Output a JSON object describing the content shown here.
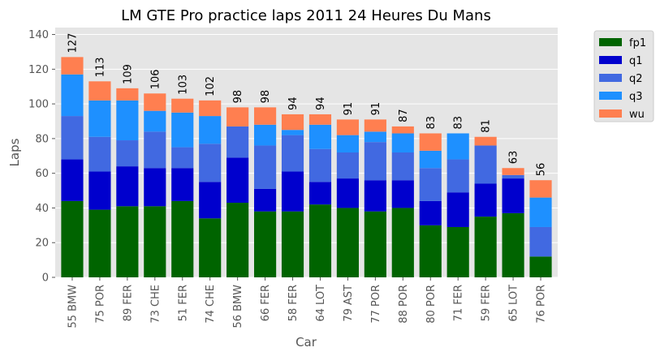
{
  "chart_data": {
    "type": "bar",
    "stacked": true,
    "title": "LM GTE Pro practice laps 2011 24 Heures Du Mans",
    "xlabel": "Car",
    "ylabel": "Laps",
    "ylim": [
      0,
      144
    ],
    "yticks": [
      0,
      20,
      40,
      60,
      80,
      100,
      120,
      140
    ],
    "grid": true,
    "legend_position": "outside-top-right",
    "categories": [
      "55 BMW",
      "75 POR",
      "89 FER",
      "73 CHE",
      "51 FER",
      "74 CHE",
      "56 BMW",
      "66 FER",
      "58 FER",
      "64 LOT",
      "79 AST",
      "77 POR",
      "88 POR",
      "80 POR",
      "71 FER",
      "59 FER",
      "65 LOT",
      "76 POR"
    ],
    "totals": [
      "127",
      "113",
      "109",
      "106",
      "103",
      "102",
      "98",
      "98",
      "94",
      "94",
      "91",
      "91",
      "87",
      "83",
      "83",
      "81",
      "63",
      "56"
    ],
    "series": [
      {
        "name": "fp1",
        "color": "#006400",
        "values": [
          44,
          39,
          41,
          41,
          44,
          34,
          43,
          38,
          38,
          42,
          40,
          38,
          40,
          30,
          29,
          35,
          37,
          12
        ]
      },
      {
        "name": "q1",
        "color": "#0000cd",
        "values": [
          24,
          22,
          23,
          22,
          19,
          21,
          26,
          13,
          23,
          13,
          17,
          18,
          16,
          14,
          20,
          19,
          20,
          0
        ]
      },
      {
        "name": "q2",
        "color": "#4169e1",
        "values": [
          25,
          20,
          15,
          21,
          12,
          22,
          18,
          25,
          21,
          19,
          15,
          22,
          16,
          19,
          19,
          22,
          2,
          17
        ]
      },
      {
        "name": "q3",
        "color": "#1e90ff",
        "values": [
          24,
          21,
          23,
          12,
          20,
          16,
          0,
          12,
          3,
          14,
          10,
          6,
          11,
          10,
          15,
          0,
          0,
          17
        ]
      },
      {
        "name": "wu",
        "color": "#ff7f50",
        "values": [
          10,
          11,
          7,
          10,
          8,
          9,
          11,
          10,
          9,
          6,
          9,
          7,
          4,
          10,
          0,
          5,
          4,
          10
        ]
      }
    ]
  }
}
